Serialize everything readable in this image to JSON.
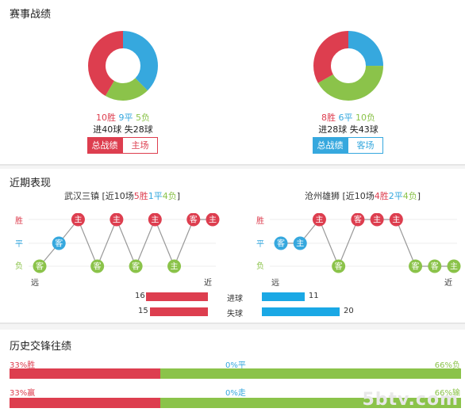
{
  "colors": {
    "win": "#dd3e4f",
    "draw": "#36a8de",
    "loss": "#8bc34a"
  },
  "record": {
    "title": "赛事战绩",
    "left": {
      "wins": 10,
      "draws": 9,
      "losses": 5,
      "win_text": "10胜",
      "draw_text": "9平",
      "loss_text": "5负",
      "goals_text": "进40球 失28球",
      "tab_total": "总战绩",
      "tab_side": "主场"
    },
    "right": {
      "wins": 8,
      "draws": 6,
      "losses": 10,
      "win_text": "8胜",
      "draw_text": "6平",
      "loss_text": "10负",
      "goals_text": "进28球 失43球",
      "tab_total": "总战绩",
      "tab_side": "客场"
    }
  },
  "recent": {
    "title": "近期表现",
    "axis": {
      "win": "胜",
      "draw": "平",
      "loss": "负",
      "far": "远",
      "near": "近"
    },
    "left": {
      "team": "武汉三镇",
      "bracket_open": " [近10场",
      "w": "5胜",
      "d": "1平",
      "l": "4负",
      "bracket_close": "]",
      "results": [
        "L",
        "D",
        "W",
        "L",
        "W",
        "L",
        "W",
        "L",
        "W",
        "W"
      ],
      "venues": [
        "客",
        "客",
        "主",
        "客",
        "主",
        "客",
        "主",
        "主",
        "客",
        "主"
      ]
    },
    "right": {
      "team": "沧州雄狮",
      "bracket_open": " [近10场",
      "w": "4胜",
      "d": "2平",
      "l": "4负",
      "bracket_close": "]",
      "results": [
        "D",
        "D",
        "W",
        "L",
        "W",
        "W",
        "W",
        "L",
        "L",
        "L"
      ],
      "venues": [
        "客",
        "主",
        "主",
        "客",
        "客",
        "主",
        "主",
        "客",
        "客",
        "主"
      ]
    },
    "goals": {
      "scored_label": "进球",
      "conceded_label": "失球",
      "left_scored": 16,
      "left_conceded": 15,
      "right_scored": 11,
      "right_conceded": 20,
      "max": 20
    }
  },
  "history": {
    "title": "历史交锋往绩",
    "row1": {
      "left": "33%胜",
      "mid": "0%平",
      "right": "66%负",
      "left_pct": 33,
      "right_pct": 66
    },
    "row2": {
      "left": "33%赢",
      "mid": "0%走",
      "right": "66%输",
      "left_pct": 33,
      "right_pct": 66
    }
  },
  "watermark": "5btv.com"
}
